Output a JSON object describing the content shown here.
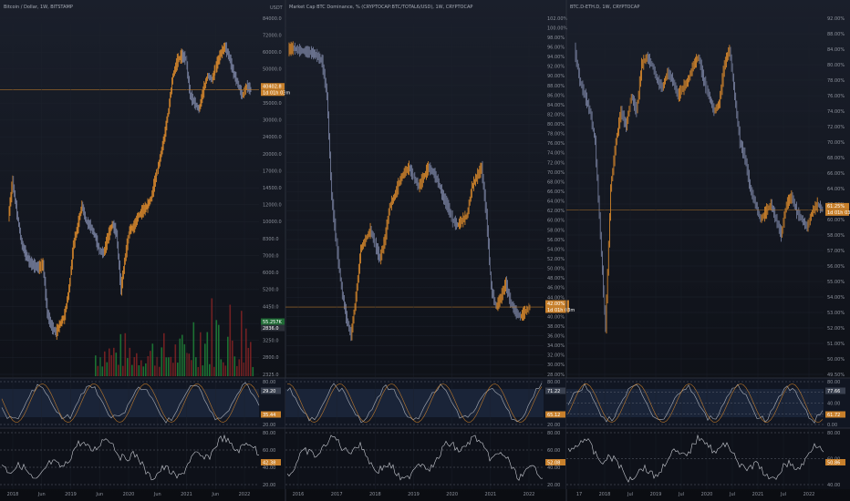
{
  "theme": {
    "bg": "#0b0d12",
    "bg_top": "#1a1f2b",
    "grid": "#1d222c",
    "divider": "#2a2f3a",
    "tick": "#8c919b",
    "up": "#e8912c",
    "down": "#7d86a6",
    "hline": "#c8802b",
    "osc_line": "#9aa0ab",
    "osc_band": "#22324a",
    "osc_dash": "#5c6270",
    "vol_up": "#1f8a3a",
    "vol_down": "#8a2424",
    "axis_label_fill": "#c8802b"
  },
  "chart_data": [
    {
      "type": "line",
      "title": "Bitcoin / Dollar, 1W, BITSTAMP",
      "currency": "USDT",
      "price_axis_ticks": [
        "84000.0",
        "72000.0",
        "60000.0",
        "50000.0",
        "42000.0",
        "35000.0",
        "30000.0",
        "24000.0",
        "20000.0",
        "17000.0",
        "14500.0",
        "12000.0",
        "10000.0",
        "8300.0",
        "7000.0",
        "6000.0",
        "5200.0",
        "4450.0",
        "3800.0",
        "3250.0",
        "2800.0",
        "2325.0"
      ],
      "x_ticks": [
        "2018",
        "Jun",
        "2019",
        "Jun",
        "2020",
        "Jun",
        "2021",
        "Jun",
        "2022"
      ],
      "price_axis_labels": [
        "40402.8",
        "1d 01h 03m",
        "55.257K",
        "2836.0"
      ],
      "series": [
        {
          "values": [
            10500,
            15500,
            11000,
            8000,
            7100,
            6600,
            6400,
            6300,
            6500,
            4200,
            3700,
            3500,
            3800,
            4100,
            5200,
            7800,
            9500,
            12000,
            10000,
            9500,
            8600,
            7400,
            7200,
            8500,
            9800,
            8800,
            5200,
            7000,
            9200,
            9500,
            10700,
            11300,
            11800,
            13000,
            16000,
            19200,
            24000,
            33000,
            47000,
            55000,
            58000,
            56000,
            38000,
            35000,
            33000,
            40000,
            47000,
            45000,
            52000,
            59000,
            64000,
            57000,
            48000,
            43000,
            38000,
            42000,
            40400
          ]
        }
      ],
      "last_value": 40402.8,
      "volume_note": "volume histogram",
      "stoch_rsi_ticks": [
        "80.00",
        "20.00"
      ],
      "stoch_rsi_labels": [
        "29.20",
        "35.44"
      ],
      "rsi_ticks": [
        "80.00",
        "60.00",
        "40.00",
        "20.00"
      ],
      "rsi_label": "42.38"
    },
    {
      "type": "line",
      "title": "Market Cap BTC Dominance, % (CRYPTOCAP:BTC/TOTAL6/USD), 1W, CRYPTOCAP",
      "price_axis_ticks": [
        "102.00%",
        "100.00%",
        "98.00%",
        "96.00%",
        "94.00%",
        "92.00%",
        "90.00%",
        "88.00%",
        "86.00%",
        "84.00%",
        "82.00%",
        "80.00%",
        "78.00%",
        "76.00%",
        "74.00%",
        "72.00%",
        "70.00%",
        "68.00%",
        "66.00%",
        "64.00%",
        "62.00%",
        "60.00%",
        "58.00%",
        "56.00%",
        "54.00%",
        "52.00%",
        "50.00%",
        "48.00%",
        "46.00%",
        "44.00%",
        "42.00%",
        "40.00%",
        "38.00%",
        "36.00%",
        "34.00%",
        "32.00%",
        "30.00%",
        "28.00%"
      ],
      "x_ticks": [
        "2016",
        "2017",
        "2018",
        "2019",
        "2020",
        "2021",
        "2022"
      ],
      "price_axis_labels": [
        "42.00%",
        "1d 01h 03m"
      ],
      "series": [
        {
          "values": [
            95.5,
            95.8,
            95.4,
            95.2,
            95.0,
            94.8,
            94.2,
            93.0,
            86.0,
            65.0,
            55.0,
            46.0,
            40.0,
            36.0,
            44.0,
            54.0,
            56.0,
            58.0,
            55.0,
            52.0,
            56.0,
            63.0,
            65.0,
            68.0,
            70.0,
            71.0,
            69.0,
            67.0,
            69.0,
            71.0,
            70.0,
            68.0,
            65.0,
            63.0,
            60.0,
            59.0,
            60.0,
            61.0,
            67.0,
            69.0,
            71.0,
            61.0,
            46.0,
            42.0,
            44.0,
            47.0,
            43.0,
            41.0,
            40.0,
            41.0,
            42.0
          ]
        }
      ],
      "last_value": 42.0,
      "stoch_rsi_ticks": [
        "80.00",
        "20.00"
      ],
      "stoch_rsi_labels": [
        "71.22",
        "65.12"
      ],
      "rsi_ticks": [
        "80.00",
        "60.00",
        "40.00",
        "20.00"
      ],
      "rsi_label": "52.08"
    },
    {
      "type": "line",
      "title": "BTC.D-ETH.D, 1W, CRYPTOCAP",
      "price_axis_ticks": [
        "92.00%",
        "88.00%",
        "84.00%",
        "80.00%",
        "78.00%",
        "76.00%",
        "74.00%",
        "72.00%",
        "70.00%",
        "68.00%",
        "66.00%",
        "64.00%",
        "62.00%",
        "60.00%",
        "58.00%",
        "57.00%",
        "56.00%",
        "55.00%",
        "54.00%",
        "53.00%",
        "52.00%",
        "51.00%",
        "50.00%",
        "49.50%"
      ],
      "x_ticks": [
        "17",
        "2018",
        "Jul",
        "2019",
        "Jul",
        "2020",
        "Jul",
        "2021",
        "Jul",
        "2022"
      ],
      "price_axis_labels": [
        "61.25%",
        "1d 01h 03m"
      ],
      "series": [
        {
          "values": [
            84,
            78,
            76,
            74,
            70,
            58,
            52,
            64,
            70,
            74,
            72,
            76,
            74,
            80,
            82,
            80,
            78,
            77,
            79,
            78,
            76,
            77,
            78,
            80,
            82,
            78,
            76,
            74,
            75,
            80,
            84,
            76,
            70,
            68,
            64,
            62,
            60,
            61,
            62,
            60,
            58,
            62,
            63,
            61,
            60,
            59,
            61,
            62,
            61.25
          ]
        }
      ],
      "last_value": 61.25,
      "stoch_rsi_ticks": [
        "80.00",
        "60.00",
        "40.00",
        "20.00",
        "0.00"
      ],
      "stoch_rsi_labels": [
        "77.66",
        "61.72"
      ],
      "rsi_ticks": [
        "80.00",
        "60.00",
        "40.00"
      ],
      "rsi_label": "50.86"
    }
  ]
}
